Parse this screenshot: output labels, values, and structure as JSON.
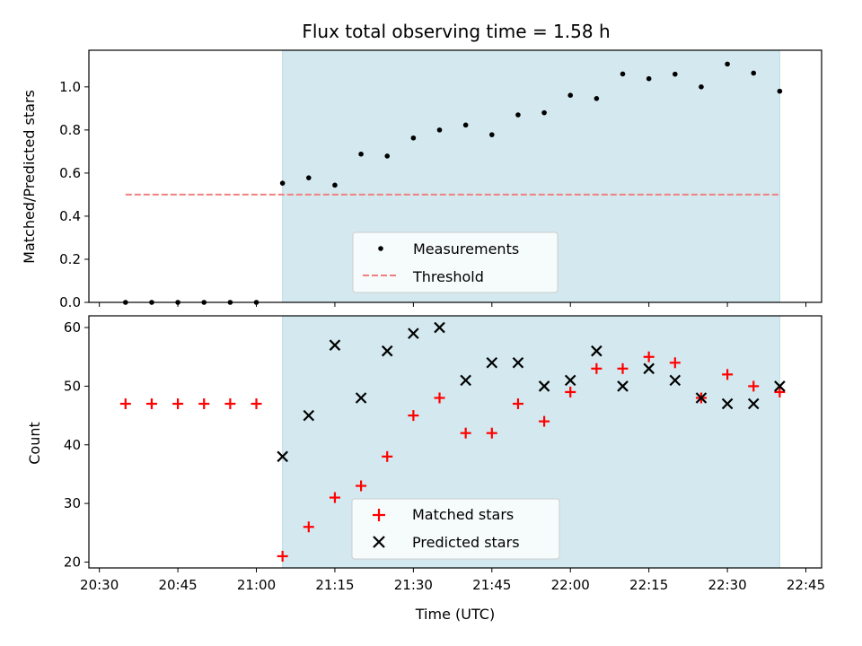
{
  "chart_data": [
    {
      "type": "scatter",
      "title": "Flux total observing time = 1.58 h",
      "xlabel": "",
      "ylabel": "Matched/Predicted stars",
      "xlim": [
        "20:28",
        "22:48"
      ],
      "ylim": [
        0,
        1.17
      ],
      "xticks": [
        "20:30",
        "20:45",
        "21:00",
        "21:15",
        "21:30",
        "21:45",
        "22:00",
        "22:15",
        "22:30",
        "22:45"
      ],
      "yticks": [
        "0.0",
        "0.2",
        "0.4",
        "0.6",
        "0.8",
        "1.0"
      ],
      "shaded_span": {
        "from": "21:05",
        "to": "22:40",
        "color": "#d3e9ef"
      },
      "legend_position": "lower center",
      "series": [
        {
          "name": "Measurements",
          "marker": "dot",
          "color": "#000000",
          "x": [
            "20:35",
            "20:40",
            "20:45",
            "20:50",
            "20:55",
            "21:00",
            "21:05",
            "21:10",
            "21:15",
            "21:20",
            "21:25",
            "21:30",
            "21:35",
            "21:40",
            "21:45",
            "21:50",
            "21:55",
            "22:00",
            "22:05",
            "22:10",
            "22:15",
            "22:20",
            "22:25",
            "22:30",
            "22:35",
            "22:40"
          ],
          "y": [
            0,
            0,
            0,
            0,
            0,
            0,
            0.553,
            0.578,
            0.544,
            0.688,
            0.679,
            0.763,
            0.8,
            0.823,
            0.778,
            0.87,
            0.88,
            0.961,
            0.946,
            1.06,
            1.038,
            1.059,
            1.0,
            1.106,
            1.064,
            0.98
          ]
        },
        {
          "name": "Threshold",
          "line": "dashed",
          "color": "#f08080",
          "x": [
            "20:35",
            "22:40"
          ],
          "y": [
            0.5,
            0.5
          ]
        }
      ]
    },
    {
      "type": "scatter",
      "title": "",
      "xlabel": "Time (UTC)",
      "ylabel": "Count",
      "xlim": [
        "20:28",
        "22:48"
      ],
      "ylim": [
        19,
        62
      ],
      "xticks": [
        "20:30",
        "20:45",
        "21:00",
        "21:15",
        "21:30",
        "21:45",
        "22:00",
        "22:15",
        "22:30",
        "22:45"
      ],
      "yticks": [
        "20",
        "30",
        "40",
        "50",
        "60"
      ],
      "shaded_span": {
        "from": "21:05",
        "to": "22:40",
        "color": "#d3e9ef"
      },
      "legend_position": "lower center",
      "series": [
        {
          "name": "Matched stars",
          "marker": "plus",
          "color": "#ff0000",
          "x": [
            "20:35",
            "20:40",
            "20:45",
            "20:50",
            "20:55",
            "21:00",
            "21:05",
            "21:10",
            "21:15",
            "21:20",
            "21:25",
            "21:30",
            "21:35",
            "21:40",
            "21:45",
            "21:50",
            "21:55",
            "22:00",
            "22:05",
            "22:10",
            "22:15",
            "22:20",
            "22:25",
            "22:30",
            "22:35",
            "22:40"
          ],
          "y": [
            47,
            47,
            47,
            47,
            47,
            47,
            21,
            26,
            31,
            33,
            38,
            45,
            48,
            42,
            42,
            47,
            44,
            49,
            53,
            53,
            55,
            54,
            48,
            52,
            50,
            49
          ]
        },
        {
          "name": "Predicted stars",
          "marker": "x",
          "color": "#000000",
          "x": [
            "21:05",
            "21:10",
            "21:15",
            "21:20",
            "21:25",
            "21:30",
            "21:35",
            "21:40",
            "21:45",
            "21:50",
            "21:55",
            "22:00",
            "22:05",
            "22:10",
            "22:15",
            "22:20",
            "22:25",
            "22:30",
            "22:35",
            "22:40"
          ],
          "y": [
            38,
            45,
            57,
            48,
            56,
            59,
            60,
            51,
            54,
            54,
            50,
            51,
            56,
            50,
            53,
            51,
            48,
            47,
            47,
            50
          ]
        }
      ]
    }
  ]
}
